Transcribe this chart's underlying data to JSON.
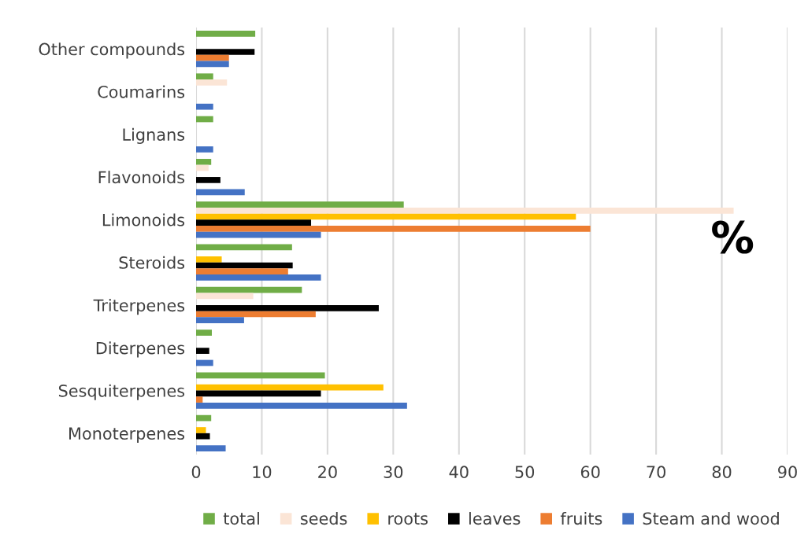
{
  "chart_data": {
    "type": "bar",
    "orientation": "horizontal",
    "categories": [
      "Other compounds",
      "Coumarins",
      "Lignans",
      "Flavonoids",
      "Limonoids",
      "Steroids",
      "Triterpenes",
      "Diterpenes",
      "Sesquiterpenes",
      "Monoterpenes"
    ],
    "series": [
      {
        "name": "total",
        "color": "#70ad47",
        "values": [
          9.0,
          2.6,
          2.6,
          2.3,
          31.6,
          14.6,
          16.1,
          2.4,
          19.6,
          2.3
        ]
      },
      {
        "name": "seeds",
        "color": "#fbe5d6",
        "values": [
          null,
          4.7,
          null,
          1.9,
          81.8,
          null,
          8.7,
          null,
          null,
          null
        ]
      },
      {
        "name": "roots",
        "color": "#ffc000",
        "values": [
          null,
          null,
          null,
          null,
          57.8,
          3.9,
          null,
          null,
          28.5,
          1.5
        ]
      },
      {
        "name": "leaves",
        "color": "#000000",
        "values": [
          8.9,
          null,
          null,
          3.7,
          17.5,
          14.7,
          27.8,
          2.0,
          19.0,
          2.1
        ]
      },
      {
        "name": "fruits",
        "color": "#ed7d31",
        "values": [
          5.0,
          null,
          null,
          null,
          60.0,
          14.0,
          18.2,
          null,
          1.0,
          null
        ]
      },
      {
        "name": "Steam and wood",
        "color": "#4472c4",
        "values": [
          5.0,
          2.6,
          2.6,
          7.4,
          19.0,
          19.0,
          7.3,
          2.6,
          32.1,
          4.5
        ]
      }
    ],
    "xlim": [
      0,
      90
    ],
    "xticks": [
      0,
      10,
      20,
      30,
      40,
      50,
      60,
      70,
      80,
      90
    ],
    "grid": "x",
    "legend": "bottom",
    "annotations": [
      "%"
    ]
  }
}
